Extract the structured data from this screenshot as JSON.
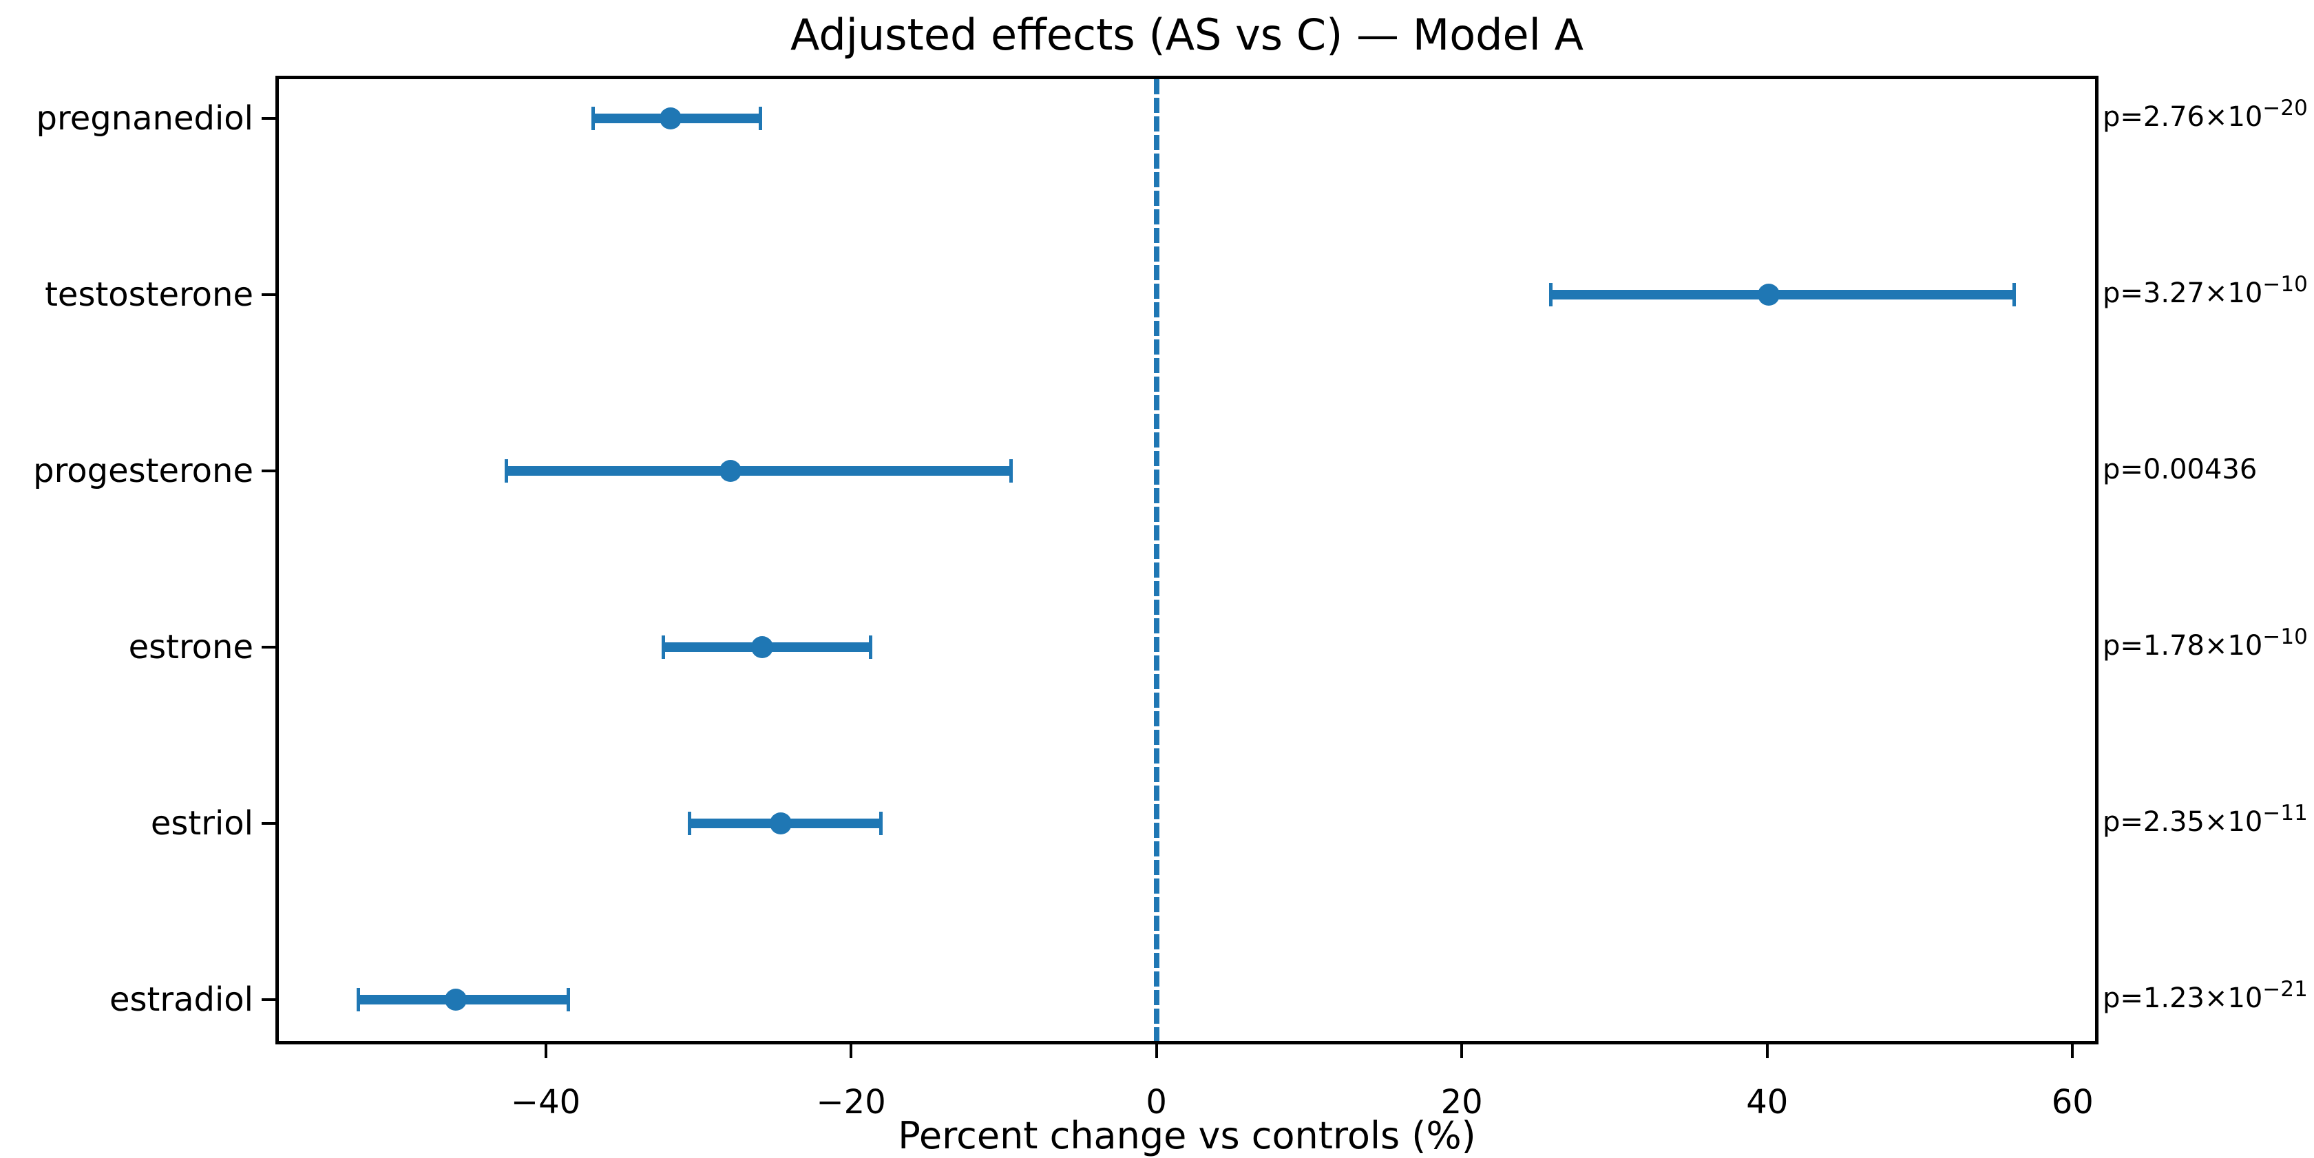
{
  "chart_data": {
    "type": "scatter",
    "variant": "horizontal-errorbar-forest-plot",
    "title": "Adjusted effects (AS vs C) — Model A",
    "xlabel": "Percent change vs controls (%)",
    "ylabel": "",
    "xlim": [
      -57.7,
      61.7
    ],
    "x_ticks": [
      -40,
      -20,
      0,
      20,
      40,
      60
    ],
    "x_tick_labels": [
      "−40",
      "−20",
      "0",
      "20",
      "40",
      "60"
    ],
    "grid": false,
    "legend": "none",
    "accent_color": "#1f77b4",
    "axis_color": "#000000",
    "reference_line": {
      "x": 0,
      "style": "dashed",
      "color": "#1f77b4"
    },
    "rows": [
      {
        "label": "pregnanediol",
        "estimate": -31.8,
        "ci_low": -36.9,
        "ci_high": -25.9,
        "p_text": "p=2.76×10",
        "p_sup": "−20"
      },
      {
        "label": "testosterone",
        "estimate": 40.1,
        "ci_low": 25.8,
        "ci_high": 56.2,
        "p_text": "p=3.27×10",
        "p_sup": "−10"
      },
      {
        "label": "progesterone",
        "estimate": -27.9,
        "ci_low": -42.6,
        "ci_high": -9.5,
        "p_text": "p=0.00436",
        "p_sup": ""
      },
      {
        "label": "estrone",
        "estimate": -25.8,
        "ci_low": -32.3,
        "ci_high": -18.7,
        "p_text": "p=1.78×10",
        "p_sup": "−10"
      },
      {
        "label": "estriol",
        "estimate": -24.6,
        "ci_low": -30.6,
        "ci_high": -18.0,
        "p_text": "p=2.35×10",
        "p_sup": "−11"
      },
      {
        "label": "estradiol",
        "estimate": -45.9,
        "ci_low": -52.3,
        "ci_high": -38.5,
        "p_text": "p=1.23×10",
        "p_sup": "−21"
      }
    ]
  }
}
